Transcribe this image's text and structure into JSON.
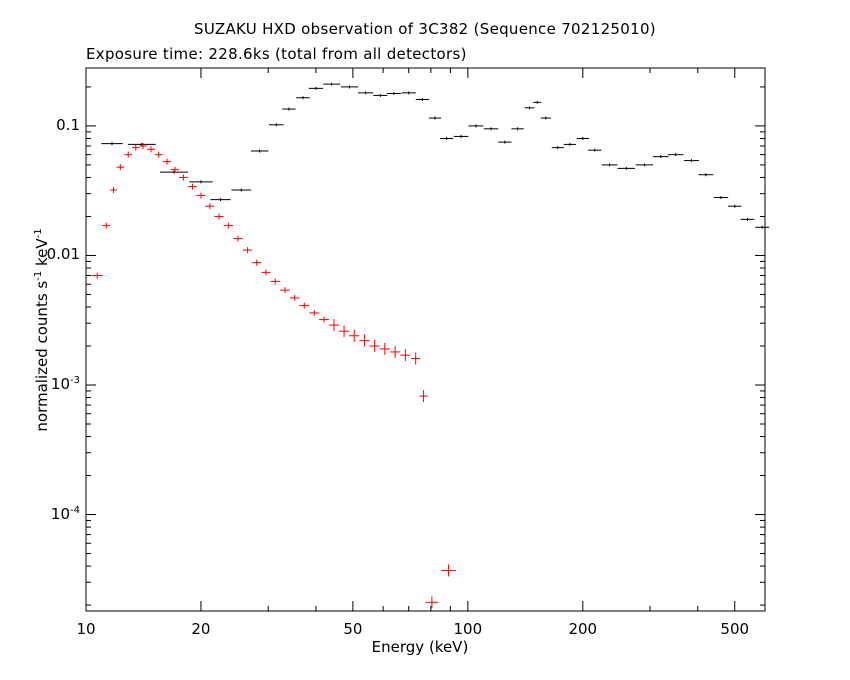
{
  "chart_data": {
    "type": "scatter",
    "title": "SUZAKU HXD observation of 3C382 (Sequence 702125010)",
    "subtitle": "Exposure time: 228.6ks (total from all detectors)",
    "xlabel": "Energy (keV)",
    "ylabel_text": "normalized counts s",
    "ylabel_exp1": "-1",
    "ylabel_mid": " keV",
    "ylabel_exp2": "-1",
    "x_scale": "log",
    "y_scale": "log",
    "xlim": [
      10,
      600
    ],
    "ylim": [
      1.8e-05,
      0.28
    ],
    "x_ticks": [
      {
        "value": 10,
        "label": "10"
      },
      {
        "value": 20,
        "label": "20"
      },
      {
        "value": 50,
        "label": "50"
      },
      {
        "value": 100,
        "label": "100"
      },
      {
        "value": 200,
        "label": "200"
      },
      {
        "value": 500,
        "label": "500"
      }
    ],
    "y_ticks": [
      {
        "value": 0.1,
        "base": "0.1",
        "exp": ""
      },
      {
        "value": 0.01,
        "base": "0.01",
        "exp": ""
      },
      {
        "value": 0.001,
        "base": "10",
        "exp": "-3"
      },
      {
        "value": 0.0001,
        "base": "10",
        "exp": "-4"
      }
    ],
    "series": [
      {
        "color": "#000000",
        "points": [
          [
            11.7,
            0.073
          ],
          [
            14.0,
            0.072
          ],
          [
            17.0,
            0.044
          ],
          [
            20.0,
            0.037
          ],
          [
            22.5,
            0.027
          ],
          [
            25.5,
            0.032
          ],
          [
            28.5,
            0.064
          ],
          [
            31.5,
            0.102
          ],
          [
            34.0,
            0.135
          ],
          [
            37.0,
            0.165
          ],
          [
            40.0,
            0.195
          ],
          [
            44.0,
            0.21
          ],
          [
            49.0,
            0.2
          ],
          [
            54.0,
            0.18
          ],
          [
            59.0,
            0.172
          ],
          [
            64.0,
            0.178
          ],
          [
            70.0,
            0.18
          ],
          [
            76.0,
            0.16
          ],
          [
            82.0,
            0.115
          ],
          [
            88.0,
            0.08
          ],
          [
            96.0,
            0.083
          ],
          [
            105.0,
            0.1
          ],
          [
            115.0,
            0.095
          ],
          [
            125.0,
            0.075
          ],
          [
            135.0,
            0.095
          ],
          [
            145.0,
            0.138
          ],
          [
            152.0,
            0.152
          ],
          [
            160.0,
            0.115
          ],
          [
            172.0,
            0.068
          ],
          [
            185.0,
            0.072
          ],
          [
            200.0,
            0.08
          ],
          [
            215.0,
            0.065
          ],
          [
            235.0,
            0.05
          ],
          [
            260.0,
            0.047
          ],
          [
            290.0,
            0.05
          ],
          [
            320.0,
            0.058
          ],
          [
            350.0,
            0.06
          ],
          [
            385.0,
            0.054
          ],
          [
            420.0,
            0.042
          ],
          [
            460.0,
            0.028
          ],
          [
            500.0,
            0.024
          ],
          [
            540.0,
            0.019
          ],
          [
            590.0,
            0.0165
          ]
        ]
      },
      {
        "color": "#ff0000",
        "points": [
          [
            10.7,
            0.007
          ],
          [
            11.3,
            0.017
          ],
          [
            11.8,
            0.032
          ],
          [
            12.3,
            0.048
          ],
          [
            12.9,
            0.06
          ],
          [
            13.5,
            0.068
          ],
          [
            14.1,
            0.07
          ],
          [
            14.8,
            0.066
          ],
          [
            15.5,
            0.06
          ],
          [
            16.3,
            0.053
          ],
          [
            17.1,
            0.046
          ],
          [
            18.0,
            0.04
          ],
          [
            19.0,
            0.034
          ],
          [
            20.0,
            0.029
          ],
          [
            21.1,
            0.024
          ],
          [
            22.3,
            0.02
          ],
          [
            23.6,
            0.017
          ],
          [
            25.0,
            0.0135
          ],
          [
            26.5,
            0.011
          ],
          [
            28.0,
            0.0088
          ],
          [
            29.6,
            0.0074
          ],
          [
            31.3,
            0.0063
          ],
          [
            33.2,
            0.0054
          ],
          [
            35.2,
            0.0047
          ],
          [
            37.3,
            0.0041
          ],
          [
            39.6,
            0.0036
          ],
          [
            42.0,
            0.0032
          ],
          [
            44.6,
            0.0029
          ],
          [
            47.4,
            0.0026
          ],
          [
            50.4,
            0.0024
          ],
          [
            53.6,
            0.0022
          ],
          [
            57.0,
            0.002
          ],
          [
            60.6,
            0.0019
          ],
          [
            64.5,
            0.0018
          ],
          [
            68.6,
            0.0017
          ],
          [
            73.0,
            0.0016
          ],
          [
            76.5,
            0.00082
          ],
          [
            80.5,
            2.1e-05
          ],
          [
            89.0,
            3.7e-05
          ]
        ]
      }
    ]
  }
}
